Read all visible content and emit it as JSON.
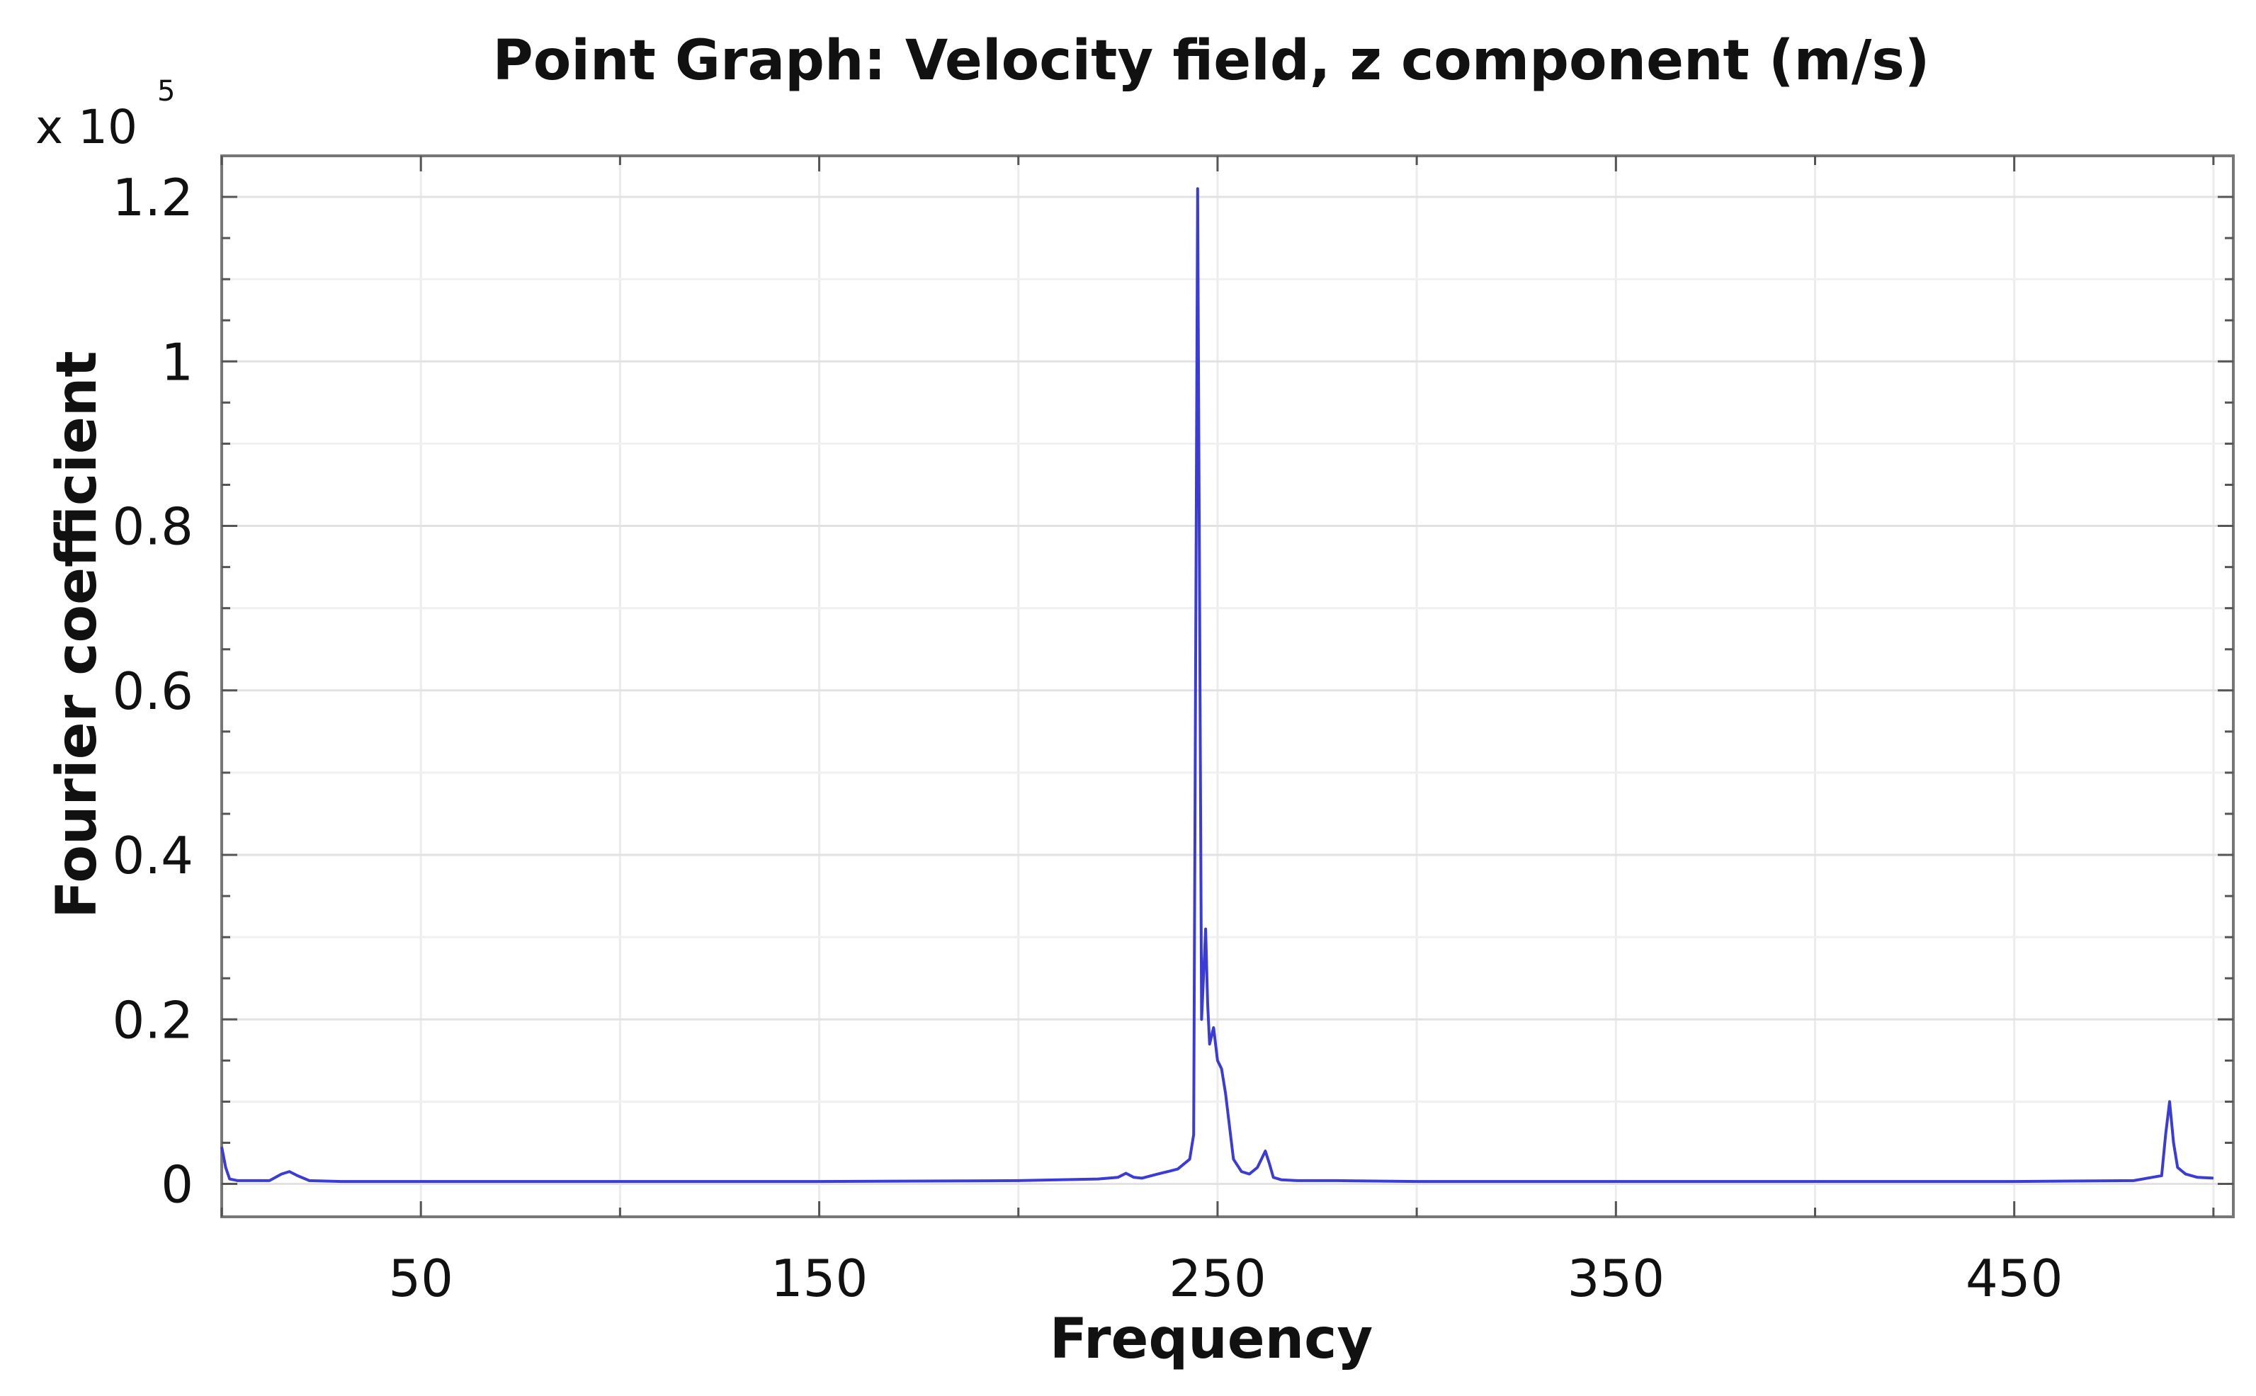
{
  "chart_data": {
    "type": "line",
    "title": "Point Graph: Velocity field, z component (m/s)",
    "xlabel": "Frequency",
    "ylabel": "Fourier coefficient",
    "y_multiplier": "x 10",
    "y_multiplier_exponent": "5",
    "xlim": [
      0,
      505
    ],
    "ylim": [
      -0.04,
      1.25
    ],
    "x_ticks": [
      50,
      150,
      250,
      350,
      450
    ],
    "x_tick_labels": [
      "50",
      "150",
      "250",
      "350",
      "450"
    ],
    "y_ticks": [
      0,
      0.2,
      0.4,
      0.6,
      0.8,
      1.0,
      1.2
    ],
    "y_tick_labels": [
      "0",
      "0.2",
      "0.4",
      "0.6",
      "0.8",
      "1",
      "1.2"
    ],
    "grid": true,
    "series": [
      {
        "color": "#3b3bd6",
        "x": [
          0,
          1,
          2,
          4,
          8,
          12,
          15,
          17,
          19,
          22,
          30,
          60,
          100,
          150,
          200,
          220,
          225,
          227,
          229,
          231,
          235,
          240,
          243,
          244,
          245,
          246,
          247,
          247.5,
          248,
          249,
          250,
          251,
          252,
          253,
          254,
          256,
          258,
          260,
          261,
          262,
          263,
          264,
          266,
          270,
          280,
          300,
          350,
          400,
          450,
          480,
          487,
          488,
          489,
          490,
          491,
          493,
          496,
          500
        ],
        "y": [
          0.045,
          0.02,
          0.006,
          0.004,
          0.004,
          0.004,
          0.012,
          0.015,
          0.01,
          0.004,
          0.003,
          0.003,
          0.003,
          0.003,
          0.004,
          0.006,
          0.008,
          0.013,
          0.008,
          0.007,
          0.012,
          0.018,
          0.03,
          0.06,
          1.21,
          0.2,
          0.31,
          0.22,
          0.17,
          0.19,
          0.15,
          0.14,
          0.11,
          0.07,
          0.03,
          0.015,
          0.012,
          0.02,
          0.03,
          0.04,
          0.025,
          0.008,
          0.005,
          0.004,
          0.004,
          0.003,
          0.003,
          0.003,
          0.003,
          0.004,
          0.01,
          0.06,
          0.1,
          0.05,
          0.02,
          0.012,
          0.008,
          0.007
        ]
      }
    ]
  }
}
